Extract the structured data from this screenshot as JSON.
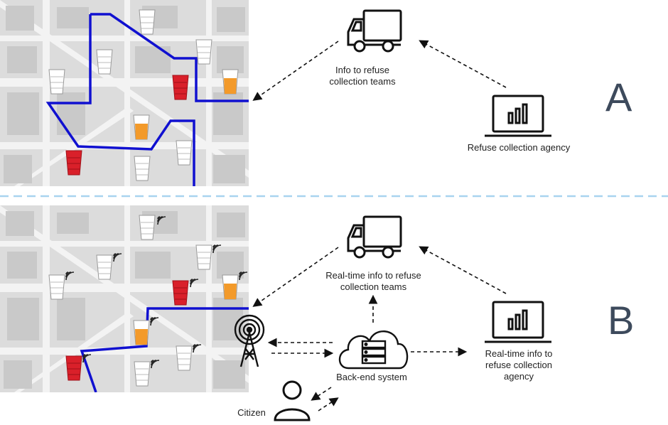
{
  "panel_a": {
    "letter": "A",
    "truck_label_line1": "Info to refuse",
    "truck_label_line2": "collection teams",
    "agency_label": "Refuse collection agency"
  },
  "panel_b": {
    "letter": "B",
    "truck_label_line1": "Real-time info to refuse",
    "truck_label_line2": "collection teams",
    "backend_label": "Back-end system",
    "agency_label_line1": "Real-time info to",
    "agency_label_line2": "refuse collection",
    "agency_label_line3": "agency",
    "citizen_label": "Citizen"
  },
  "colors": {
    "route": "#1010d0",
    "bin_full": "#d9202a",
    "bin_half": "#f39a2a",
    "bin_empty": "#ffffff",
    "divider": "#a8d4ef"
  },
  "icons": [
    "truck-icon",
    "laptop-chart-icon",
    "cloud-server-icon",
    "antenna-tower-icon",
    "citizen-icon",
    "wifi-signal-icon",
    "waste-bin-icon"
  ]
}
